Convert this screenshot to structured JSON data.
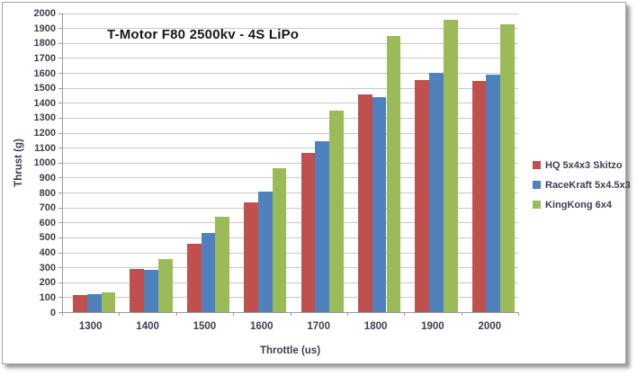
{
  "chart_data": {
    "type": "bar",
    "title": "T-Motor F80 2500kv - 4S LiPo",
    "xlabel": "Throttle (us)",
    "ylabel": "Thrust (g)",
    "categories": [
      "1300",
      "1400",
      "1500",
      "1600",
      "1700",
      "1800",
      "1900",
      "2000"
    ],
    "series": [
      {
        "name": "HQ 5x4x3 Skitzo",
        "color": "#C0504D",
        "values": [
          115,
          290,
          455,
          735,
          1065,
          1455,
          1555,
          1545
        ]
      },
      {
        "name": "RaceKraft 5x4.5x3",
        "color": "#4F81BD",
        "values": [
          120,
          280,
          530,
          805,
          1145,
          1440,
          1600,
          1590
        ]
      },
      {
        "name": "KingKong 6x4",
        "color": "#9BBB59",
        "values": [
          130,
          355,
          635,
          960,
          1345,
          1845,
          1955,
          1925
        ]
      }
    ],
    "ylim": [
      0,
      2000
    ],
    "ytick_step": 100,
    "grid": true,
    "legend_position": "right"
  },
  "colors": {
    "gridline": "#c9c9c9",
    "axis": "#9b9b9b",
    "text": "#3b4050",
    "title_text": "#17181d",
    "background": "#ffffff"
  }
}
